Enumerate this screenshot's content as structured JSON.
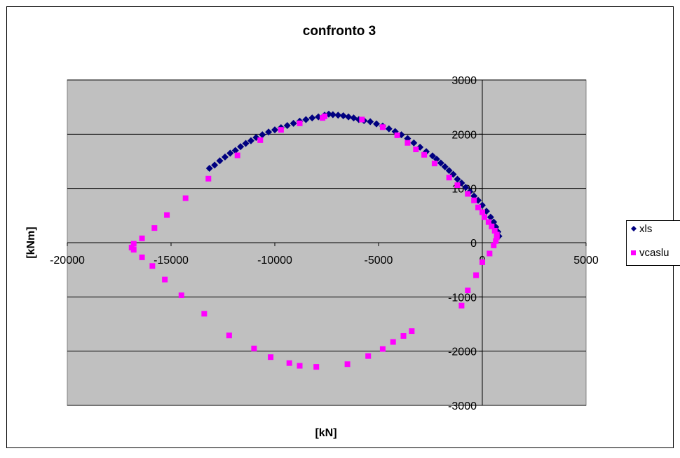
{
  "chart_data": {
    "type": "scatter",
    "title": "confronto 3",
    "xlabel": "[kN]",
    "ylabel": "[kNm]",
    "xlim": [
      -20000,
      5000
    ],
    "ylim": [
      -3000,
      3000
    ],
    "xticks": [
      -20000,
      -15000,
      -10000,
      -5000,
      0,
      5000
    ],
    "yticks": [
      -3000,
      -2000,
      -1000,
      0,
      1000,
      2000,
      3000
    ],
    "xtick_labels": [
      "-20000",
      "-15000",
      "-10000",
      "-5000",
      "0",
      "5000"
    ],
    "ytick_labels": [
      "-3000",
      "-2000",
      "-1000",
      "0",
      "1000",
      "2000",
      "3000"
    ],
    "grid": "horizontal major gridlines",
    "legend_position": "right",
    "colors": {
      "plot_area": "#c0c0c0",
      "xls": "#000080",
      "vcaslu": "#ff00ff"
    },
    "series": [
      {
        "name": "xls",
        "marker": "diamond",
        "color": "#000080",
        "points": [
          [
            -13150,
            1370
          ],
          [
            -12900,
            1430
          ],
          [
            -12650,
            1510
          ],
          [
            -12400,
            1580
          ],
          [
            -12150,
            1650
          ],
          [
            -11900,
            1700
          ],
          [
            -11650,
            1770
          ],
          [
            -11400,
            1830
          ],
          [
            -11150,
            1880
          ],
          [
            -10900,
            1940
          ],
          [
            -10600,
            1990
          ],
          [
            -10300,
            2040
          ],
          [
            -10000,
            2080
          ],
          [
            -9700,
            2120
          ],
          [
            -9400,
            2160
          ],
          [
            -9100,
            2200
          ],
          [
            -8800,
            2240
          ],
          [
            -8500,
            2270
          ],
          [
            -8200,
            2300
          ],
          [
            -7900,
            2320
          ],
          [
            -7600,
            2350
          ],
          [
            -7400,
            2370
          ],
          [
            -7200,
            2360
          ],
          [
            -6950,
            2350
          ],
          [
            -6700,
            2340
          ],
          [
            -6450,
            2320
          ],
          [
            -6200,
            2300
          ],
          [
            -5950,
            2270
          ],
          [
            -5700,
            2250
          ],
          [
            -5400,
            2230
          ],
          [
            -5100,
            2190
          ],
          [
            -4800,
            2150
          ],
          [
            -4500,
            2100
          ],
          [
            -4200,
            2050
          ],
          [
            -3900,
            1990
          ],
          [
            -3600,
            1920
          ],
          [
            -3300,
            1840
          ],
          [
            -3000,
            1760
          ],
          [
            -2700,
            1680
          ],
          [
            -2400,
            1600
          ],
          [
            -2200,
            1540
          ],
          [
            -2000,
            1470
          ],
          [
            -1800,
            1400
          ],
          [
            -1600,
            1330
          ],
          [
            -1400,
            1260
          ],
          [
            -1200,
            1170
          ],
          [
            -1000,
            1100
          ],
          [
            -800,
            1020
          ],
          [
            -600,
            940
          ],
          [
            -400,
            860
          ],
          [
            -200,
            780
          ],
          [
            0,
            690
          ],
          [
            200,
            580
          ],
          [
            400,
            470
          ],
          [
            550,
            380
          ],
          [
            650,
            290
          ],
          [
            750,
            200
          ],
          [
            800,
            120
          ]
        ]
      },
      {
        "name": "vcaslu",
        "marker": "square",
        "color": "#ff00ff",
        "points": [
          [
            -13200,
            1180
          ],
          [
            -11800,
            1610
          ],
          [
            -10700,
            1890
          ],
          [
            -9700,
            2080
          ],
          [
            -8800,
            2200
          ],
          [
            -7700,
            2300
          ],
          [
            -7600,
            2330
          ],
          [
            -5800,
            2270
          ],
          [
            -4800,
            2130
          ],
          [
            -4100,
            1980
          ],
          [
            -3600,
            1840
          ],
          [
            -3200,
            1720
          ],
          [
            -2800,
            1620
          ],
          [
            -2300,
            1460
          ],
          [
            -1600,
            1200
          ],
          [
            -1200,
            1060
          ],
          [
            -700,
            900
          ],
          [
            -400,
            780
          ],
          [
            -200,
            650
          ],
          [
            0,
            560
          ],
          [
            100,
            470
          ],
          [
            300,
            380
          ],
          [
            450,
            300
          ],
          [
            600,
            220
          ],
          [
            700,
            150
          ],
          [
            700,
            100
          ],
          [
            650,
            30
          ],
          [
            550,
            -50
          ],
          [
            350,
            -200
          ],
          [
            0,
            -360
          ],
          [
            -300,
            -600
          ],
          [
            -700,
            -880
          ],
          [
            -1000,
            -1160
          ],
          [
            -3400,
            -1630
          ],
          [
            -3800,
            -1720
          ],
          [
            -4300,
            -1830
          ],
          [
            -4800,
            -1960
          ],
          [
            -5500,
            -2090
          ],
          [
            -6500,
            -2240
          ],
          [
            -8000,
            -2290
          ],
          [
            -8800,
            -2270
          ],
          [
            -9300,
            -2220
          ],
          [
            -10200,
            -2110
          ],
          [
            -11000,
            -1950
          ],
          [
            -12200,
            -1710
          ],
          [
            -13400,
            -1310
          ],
          [
            -14500,
            -970
          ],
          [
            -15300,
            -680
          ],
          [
            -15900,
            -430
          ],
          [
            -16400,
            -270
          ],
          [
            -16800,
            -130
          ],
          [
            -16900,
            -90
          ],
          [
            -16800,
            -20
          ],
          [
            -16400,
            80
          ],
          [
            -15800,
            270
          ],
          [
            -15200,
            510
          ],
          [
            -14300,
            820
          ]
        ]
      }
    ]
  }
}
